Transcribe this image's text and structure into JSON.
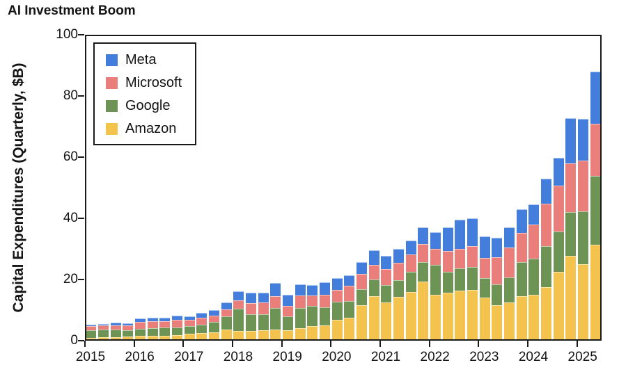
{
  "title": "AI Investment Boom",
  "chart_data": {
    "type": "bar",
    "stacked": true,
    "title": "AI Investment Boom",
    "xlabel": "",
    "ylabel": "Capital Expenditures (Quarterly, $B)",
    "ylim": [
      0,
      100
    ],
    "yticks": [
      0,
      20,
      40,
      60,
      80,
      100
    ],
    "grid": false,
    "legend_position": "upper-left-inside",
    "x_tick_years": [
      "2015",
      "2016",
      "2017",
      "2018",
      "2019",
      "2020",
      "2021",
      "2022",
      "2023",
      "2024",
      "2025"
    ],
    "categories": [
      "2015Q1",
      "2015Q2",
      "2015Q3",
      "2015Q4",
      "2016Q1",
      "2016Q2",
      "2016Q3",
      "2016Q4",
      "2017Q1",
      "2017Q2",
      "2017Q3",
      "2017Q4",
      "2018Q1",
      "2018Q2",
      "2018Q3",
      "2018Q4",
      "2019Q1",
      "2019Q2",
      "2019Q3",
      "2019Q4",
      "2020Q1",
      "2020Q2",
      "2020Q3",
      "2020Q4",
      "2021Q1",
      "2021Q2",
      "2021Q3",
      "2021Q4",
      "2022Q1",
      "2022Q2",
      "2022Q3",
      "2022Q4",
      "2023Q1",
      "2023Q2",
      "2023Q3",
      "2023Q4",
      "2024Q1",
      "2024Q2",
      "2024Q3",
      "2024Q4",
      "2025Q1",
      "2025Q2"
    ],
    "stack_order_bottom_to_top": [
      "Amazon",
      "Google",
      "Microsoft",
      "Meta"
    ],
    "series": [
      {
        "name": "Meta",
        "color": "#437EDC",
        "values": [
          0.5,
          0.5,
          0.8,
          0.7,
          1.0,
          1.1,
          1.1,
          1.2,
          1.2,
          1.4,
          1.8,
          2.3,
          2.8,
          3.5,
          3.3,
          4.4,
          3.8,
          3.8,
          3.5,
          4.1,
          3.7,
          3.4,
          3.9,
          4.8,
          4.3,
          4.7,
          4.5,
          5.4,
          5.5,
          7.7,
          9.5,
          9.0,
          7.1,
          6.4,
          6.5,
          7.6,
          6.7,
          8.3,
          9.2,
          14.8,
          13.7,
          17.0
        ]
      },
      {
        "name": "Microsoft",
        "color": "#EA7E7B",
        "values": [
          1.4,
          1.4,
          1.5,
          1.5,
          2.3,
          2.2,
          2.1,
          2.5,
          2.1,
          2.3,
          2.1,
          2.3,
          2.9,
          3.5,
          3.7,
          3.7,
          3.4,
          3.9,
          3.4,
          3.9,
          3.9,
          4.9,
          4.9,
          4.8,
          5.1,
          5.6,
          5.8,
          5.9,
          5.3,
          6.9,
          6.3,
          6.8,
          6.6,
          8.9,
          9.9,
          9.7,
          11.0,
          13.9,
          14.9,
          15.8,
          16.7,
          17.1
        ]
      },
      {
        "name": "Google",
        "color": "#6D9355",
        "values": [
          2.4,
          2.5,
          2.4,
          2.1,
          2.4,
          2.5,
          2.6,
          2.6,
          2.5,
          2.8,
          3.5,
          4.3,
          7.3,
          5.5,
          5.3,
          7.1,
          4.6,
          6.8,
          6.7,
          6.1,
          6.0,
          5.4,
          5.4,
          5.5,
          5.9,
          5.5,
          6.4,
          6.4,
          9.8,
          6.8,
          7.3,
          7.6,
          6.3,
          6.9,
          8.1,
          11.0,
          12.0,
          13.2,
          13.1,
          14.3,
          17.2,
          22.4
        ]
      },
      {
        "name": "Amazon",
        "color": "#F3C34D",
        "values": [
          1.0,
          1.1,
          1.2,
          1.3,
          1.5,
          1.7,
          1.7,
          1.8,
          2.2,
          2.5,
          2.7,
          3.6,
          3.1,
          3.2,
          3.4,
          3.7,
          3.3,
          4.0,
          4.7,
          4.9,
          6.8,
          7.6,
          11.5,
          14.5,
          12.4,
          14.3,
          16.0,
          19.3,
          14.9,
          15.7,
          16.4,
          16.6,
          14.2,
          11.5,
          12.5,
          14.6,
          14.9,
          17.6,
          22.6,
          27.8,
          25.0,
          31.4
        ]
      }
    ]
  }
}
